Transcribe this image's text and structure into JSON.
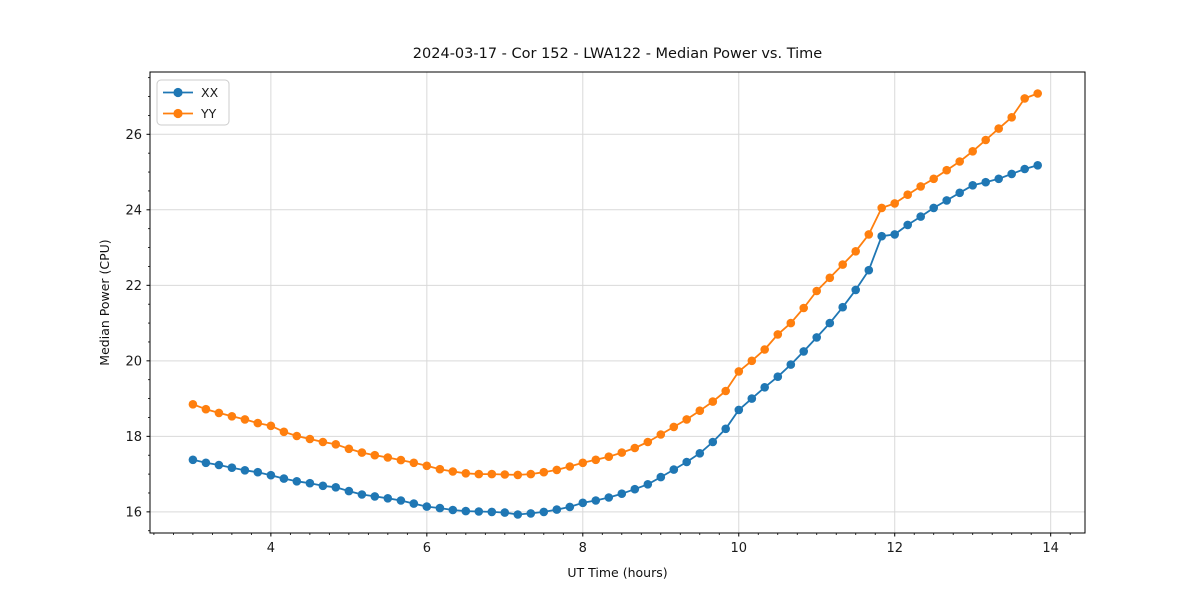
{
  "figure": {
    "title": "2024-03-17 - Cor 152 - LWA122 - Median Power vs. Time",
    "xlabel": "UT Time (hours)",
    "ylabel": "Median Power (CPU)"
  },
  "legend": {
    "items": [
      {
        "label": "XX",
        "color": "#1f77b4"
      },
      {
        "label": "YY",
        "color": "#ff7f0e"
      }
    ]
  },
  "colors": {
    "series_xx": "#1f77b4",
    "series_yy": "#ff7f0e",
    "grid": "#d9d9d9",
    "spine": "#000000",
    "legend_border": "#cccccc"
  },
  "chart_data": {
    "type": "line",
    "title": "2024-03-17 - Cor 152 - LWA122 - Median Power vs. Time",
    "xlabel": "UT Time (hours)",
    "ylabel": "Median Power (CPU)",
    "grid": "major",
    "legend_position": "upper left",
    "xlim": [
      2.45,
      14.44
    ],
    "ylim": [
      15.44,
      27.65
    ],
    "xticks": [
      4,
      6,
      8,
      10,
      12,
      14
    ],
    "yticks": [
      16,
      18,
      20,
      22,
      24,
      26
    ],
    "minor_xtick_step": 0.25,
    "minor_ytick_step": 0.5,
    "x": [
      3.0,
      3.167,
      3.333,
      3.5,
      3.667,
      3.833,
      4.0,
      4.167,
      4.333,
      4.5,
      4.667,
      4.833,
      5.0,
      5.167,
      5.333,
      5.5,
      5.667,
      5.833,
      6.0,
      6.167,
      6.333,
      6.5,
      6.667,
      6.833,
      7.0,
      7.167,
      7.333,
      7.5,
      7.667,
      7.833,
      8.0,
      8.167,
      8.333,
      8.5,
      8.667,
      8.833,
      9.0,
      9.167,
      9.333,
      9.5,
      9.667,
      9.833,
      10.0,
      10.167,
      10.333,
      10.5,
      10.667,
      10.833,
      11.0,
      11.167,
      11.333,
      11.5,
      11.667,
      11.833,
      12.0,
      12.167,
      12.333,
      12.5,
      12.667,
      12.833,
      13.0,
      13.167,
      13.333,
      13.5,
      13.667,
      13.833
    ],
    "series": [
      {
        "name": "XX",
        "color": "#1f77b4",
        "marker": "circle",
        "values": [
          17.38,
          17.3,
          17.24,
          17.17,
          17.1,
          17.05,
          16.97,
          16.88,
          16.81,
          16.76,
          16.69,
          16.65,
          16.55,
          16.46,
          16.41,
          16.36,
          16.3,
          16.22,
          16.14,
          16.1,
          16.05,
          16.02,
          16.01,
          16.0,
          15.98,
          15.93,
          15.96,
          16.0,
          16.06,
          16.13,
          16.24,
          16.3,
          16.38,
          16.48,
          16.6,
          16.73,
          16.92,
          17.12,
          17.32,
          17.55,
          17.85,
          18.2,
          18.7,
          19.0,
          19.3,
          19.58,
          19.9,
          20.25,
          20.62,
          21.0,
          21.42,
          21.88,
          22.4,
          23.3,
          23.35,
          23.6,
          23.82,
          24.05,
          24.25,
          24.45,
          24.65,
          24.73,
          24.82,
          24.95,
          25.08,
          25.18
        ]
      },
      {
        "name": "YY",
        "color": "#ff7f0e",
        "marker": "circle",
        "values": [
          18.85,
          18.72,
          18.62,
          18.53,
          18.45,
          18.35,
          18.28,
          18.12,
          18.01,
          17.93,
          17.85,
          17.79,
          17.67,
          17.57,
          17.5,
          17.44,
          17.37,
          17.3,
          17.22,
          17.13,
          17.07,
          17.02,
          17.0,
          17.0,
          16.99,
          16.98,
          17.0,
          17.05,
          17.11,
          17.2,
          17.3,
          17.38,
          17.46,
          17.57,
          17.69,
          17.85,
          18.05,
          18.25,
          18.45,
          18.68,
          18.92,
          19.2,
          19.72,
          20.0,
          20.3,
          20.7,
          21.0,
          21.4,
          21.85,
          22.2,
          22.55,
          22.9,
          23.35,
          24.05,
          24.17,
          24.4,
          24.62,
          24.82,
          25.05,
          25.28,
          25.55,
          25.85,
          26.15,
          26.45,
          26.95,
          27.08
        ]
      }
    ]
  }
}
